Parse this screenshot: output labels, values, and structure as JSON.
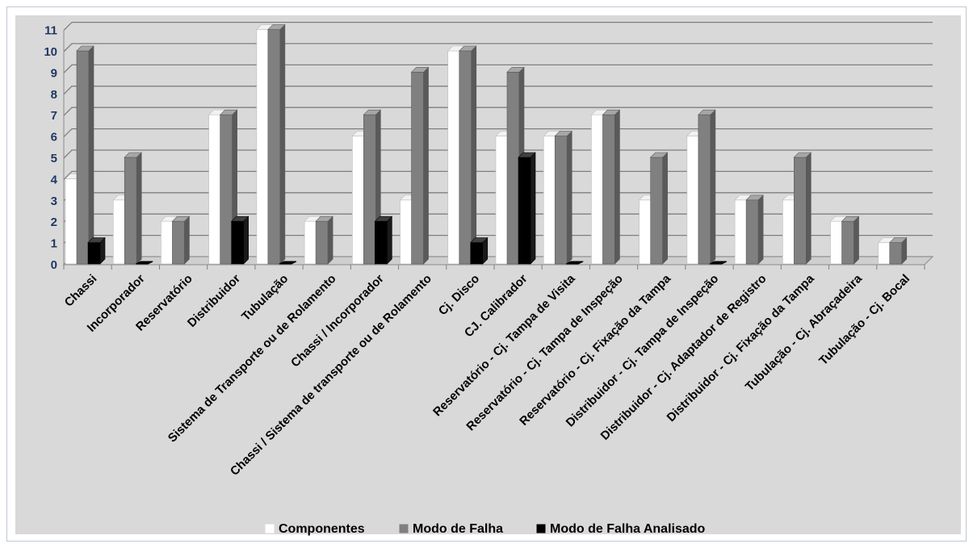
{
  "chart_data": {
    "type": "bar",
    "title": "",
    "xlabel": "",
    "ylabel": "",
    "ylim": [
      0,
      11
    ],
    "yticks": [
      0,
      1,
      2,
      3,
      4,
      5,
      6,
      7,
      8,
      9,
      10,
      11
    ],
    "grid": true,
    "legend_position": "bottom",
    "categories": [
      "Chassi",
      "Incorporador",
      "Reservatório",
      "Distribuidor",
      "Tubulação",
      "Sistema de Transporte ou de Rolamento",
      "Chassi / Incorporador",
      "Chassi / Sistema de transporte ou de Rolamento",
      "Cj. Disco",
      "CJ. Calibrador",
      "Reservatório - Cj. Tampa de Visita",
      "Reservatório - Cj. Tampa de Inspeção",
      "Reservatório - Cj. Fixação da Tampa",
      "Distribuidor -  Cj. Tampa de Inspeção",
      "Distribuidor  - Cj. Adaptador de Registro",
      "Distribuidor  - Cj. Fixação da Tampa",
      "Tubulação - Cj. Abraçadeira",
      "Tubulação - Cj. Bocal"
    ],
    "series": [
      {
        "name": "Componentes",
        "color": "#ffffff",
        "values": [
          4,
          3,
          2,
          7,
          11,
          2,
          6,
          3,
          10,
          6,
          6,
          7,
          3,
          6,
          3,
          3,
          2,
          1
        ]
      },
      {
        "name": "Modo de Falha",
        "color": "#808080",
        "values": [
          10,
          5,
          2,
          7,
          11,
          2,
          7,
          9,
          10,
          9,
          6,
          7,
          5,
          7,
          3,
          5,
          2,
          1
        ]
      },
      {
        "name": "Modo de Falha Analisado",
        "color": "#000000",
        "values": [
          1,
          0,
          null,
          2,
          0,
          null,
          2,
          null,
          1,
          5,
          0,
          null,
          null,
          0,
          null,
          null,
          null,
          null
        ]
      }
    ]
  },
  "colors": {
    "plot_background": "#d9d9d9",
    "gridline": "#7f7f7f",
    "ytick_text": "#1f3864"
  }
}
